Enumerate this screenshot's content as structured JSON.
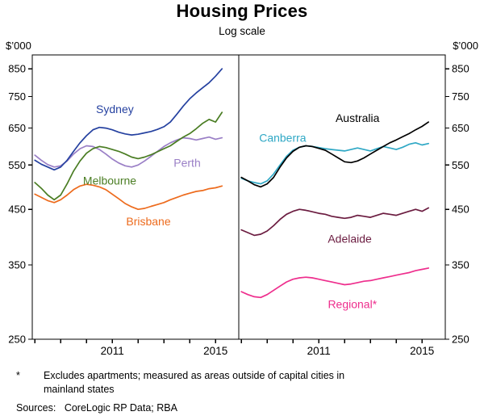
{
  "title": "Housing Prices",
  "subtitle": "Log scale",
  "y_axis": {
    "unit_label": "$’000",
    "ticks": [
      250,
      350,
      450,
      550,
      650,
      750,
      850
    ]
  },
  "x_axis": {
    "start": 2007.9,
    "end": 2015.9,
    "tick_years": [
      2008,
      2009,
      2010,
      2011,
      2012,
      2013,
      2014,
      2015
    ],
    "label_years": [
      2011,
      2015
    ]
  },
  "footnote": {
    "symbol": "*",
    "text": "Excludes apartments; measured as areas outside of capital cities in mainland states"
  },
  "sources": {
    "label": "Sources:",
    "value": "CoreLogic RP Data; RBA"
  },
  "chart_data": {
    "type": "line",
    "log_scale": true,
    "ylim": [
      250,
      905
    ],
    "ylabel": "$’000",
    "x_start": 2008.0,
    "x_step": 0.25,
    "panels": [
      {
        "side": "left",
        "series": [
          {
            "name": "Sydney",
            "label": "Sydney",
            "color": "#2541a0",
            "label_pos": [
              2011.1,
              708
            ],
            "values": [
              562,
              552,
              545,
              538,
              545,
              562,
              585,
              608,
              628,
              645,
              652,
              650,
              645,
              638,
              633,
              630,
              632,
              636,
              640,
              646,
              654,
              668,
              692,
              718,
              742,
              762,
              780,
              798,
              822,
              850
            ]
          },
          {
            "name": "Melbourne",
            "label": "Melbourne",
            "color": "#4a7d23",
            "label_pos": [
              2010.9,
              513
            ],
            "values": [
              508,
              495,
              480,
              470,
              480,
              505,
              535,
              560,
              580,
              592,
              598,
              595,
              590,
              585,
              578,
              570,
              566,
              570,
              576,
              584,
              592,
              600,
              612,
              624,
              634,
              648,
              664,
              676,
              668,
              698
            ]
          },
          {
            "name": "Perth",
            "label": "Perth",
            "color": "#9a7fc6",
            "label_pos": [
              2013.9,
              556
            ],
            "values": [
              575,
              562,
              551,
              545,
              548,
              560,
              578,
              592,
              600,
              598,
              590,
              578,
              565,
              555,
              548,
              545,
              550,
              560,
              572,
              585,
              598,
              608,
              616,
              622,
              620,
              616,
              620,
              624,
              618,
              622
            ]
          },
          {
            "name": "Brisbane",
            "label": "Brisbane",
            "color": "#ed6b1d",
            "label_pos": [
              2012.4,
              426
            ],
            "values": [
              482,
              475,
              468,
              464,
              470,
              480,
              492,
              500,
              504,
              502,
              498,
              492,
              482,
              472,
              462,
              455,
              450,
              452,
              456,
              460,
              464,
              470,
              475,
              480,
              484,
              488,
              490,
              494,
              496,
              500
            ]
          }
        ]
      },
      {
        "side": "right",
        "series": [
          {
            "name": "Australia",
            "label": "Australia",
            "color": "#000000",
            "label_pos": [
              2012.5,
              680
            ],
            "values": [
              520,
              512,
              503,
              498,
              505,
              520,
              545,
              568,
              585,
              596,
              600,
              598,
              593,
              588,
              578,
              568,
              558,
              556,
              560,
              568,
              578,
              588,
              598,
              608,
              616,
              625,
              634,
              645,
              655,
              668
            ]
          },
          {
            "name": "Canberra",
            "label": "Canberra",
            "color": "#2fa8c5",
            "label_pos": [
              2009.6,
              622
            ],
            "values": [
              518,
              512,
              508,
              505,
              512,
              528,
              550,
              572,
              588,
              596,
              600,
              598,
              595,
              592,
              590,
              588,
              586,
              590,
              594,
              590,
              586,
              592,
              598,
              594,
              590,
              596,
              604,
              608,
              602,
              606
            ]
          },
          {
            "name": "Adelaide",
            "label": "Adelaide",
            "color": "#6b1c40",
            "label_pos": [
              2012.2,
              394
            ],
            "values": [
              410,
              405,
              400,
              402,
              408,
              418,
              430,
              440,
              446,
              450,
              448,
              445,
              442,
              440,
              436,
              434,
              432,
              434,
              438,
              436,
              434,
              438,
              442,
              440,
              438,
              442,
              446,
              450,
              446,
              453
            ]
          },
          {
            "name": "Regional",
            "label": "Regional*",
            "color": "#ee2e8d",
            "label_pos": [
              2012.3,
              293
            ],
            "values": [
              310,
              306,
              303,
              302,
              306,
              312,
              318,
              324,
              328,
              330,
              331,
              330,
              328,
              326,
              324,
              322,
              320,
              321,
              323,
              325,
              326,
              328,
              330,
              332,
              334,
              336,
              338,
              341,
              343,
              345
            ]
          }
        ]
      }
    ]
  }
}
